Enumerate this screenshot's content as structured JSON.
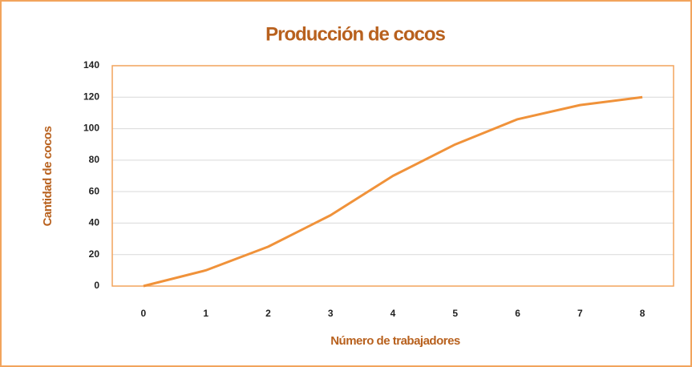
{
  "chart_data": {
    "type": "line",
    "title": "Producción de cocos",
    "x_label": "Número de trabajadores",
    "y_label": "Cantidad de cocos",
    "categories": [
      "0",
      "1",
      "2",
      "3",
      "4",
      "5",
      "6",
      "7",
      "8"
    ],
    "series": [
      {
        "name": "Producción de cocos",
        "color": "#f0923a",
        "values": [
          0,
          10,
          25,
          45,
          70,
          90,
          106,
          115,
          120
        ]
      }
    ],
    "ylim": [
      0,
      140
    ],
    "yticks": [
      0,
      20,
      40,
      60,
      80,
      100,
      120,
      140
    ],
    "grid": true,
    "legend": false
  }
}
